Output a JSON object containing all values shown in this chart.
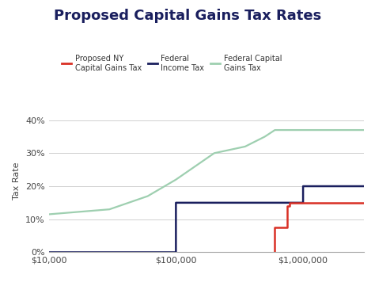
{
  "title": "Proposed Capital Gains Tax Rates",
  "ylabel": "Tax Rate",
  "background_color": "#ffffff",
  "grid_color": "#d0d0d0",
  "title_color": "#1a1f5e",
  "title_fontsize": 13,
  "federal_income_tax": {
    "label": "Federal\nIncome Tax",
    "color": "#1a1f5e",
    "x": [
      10000,
      40000,
      80000,
      100000,
      100001,
      500000,
      600000,
      1000000,
      1000001,
      3000000
    ],
    "y": [
      0,
      0,
      0,
      0,
      15,
      15,
      15,
      15,
      20,
      20
    ]
  },
  "federal_capital_gains_tax": {
    "label": "Federal Capital\nGains Tax",
    "color": "#9ecfb0",
    "x": [
      10000,
      30000,
      60000,
      100000,
      200000,
      350000,
      500000,
      600000,
      700000,
      3000000
    ],
    "y": [
      11.5,
      13,
      17,
      22,
      30,
      32,
      35,
      37,
      37,
      37
    ]
  },
  "proposed_ny_tax": {
    "label": "Proposed NY\nCapital Gains Tax",
    "color": "#d93025",
    "x": [
      600000,
      600000,
      700000,
      750000,
      750001,
      780000,
      780001,
      3000000
    ],
    "y": [
      0,
      7.5,
      7.5,
      7.5,
      14,
      14,
      15,
      15
    ]
  },
  "xticks": [
    10000,
    100000,
    1000000
  ],
  "xtick_labels": [
    "$10,000",
    "$100,000",
    "$1,000,000"
  ],
  "yticks": [
    0,
    10,
    20,
    30,
    40
  ],
  "ytick_labels": [
    "0%",
    "10%",
    "20%",
    "30%",
    "40%"
  ],
  "ylim": [
    0,
    43
  ],
  "xlim": [
    10000,
    3000000
  ]
}
